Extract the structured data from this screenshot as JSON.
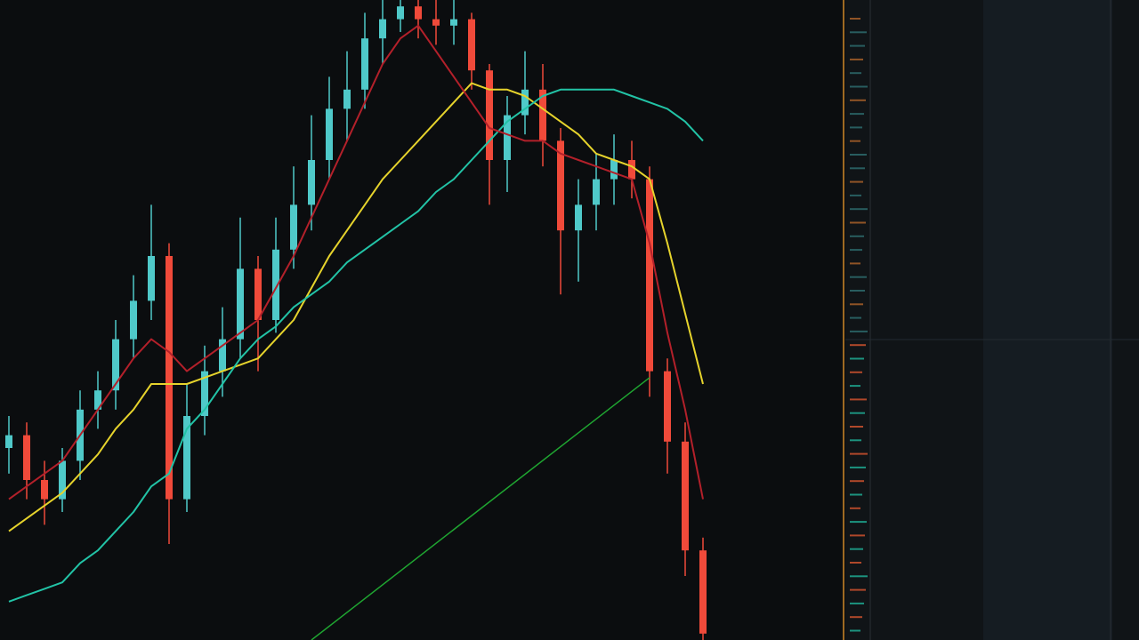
{
  "chart_data": {
    "type": "candlestick",
    "ylim": [
      0,
      100
    ],
    "up_color": "#4fc9c9",
    "down_color": "#f04a3a",
    "open": [
      30,
      32,
      25,
      22,
      28,
      36,
      39,
      47,
      53,
      60,
      22,
      35,
      42,
      47,
      58,
      50,
      61,
      68,
      75,
      83,
      86,
      94,
      97,
      99,
      97,
      96,
      97,
      89,
      75,
      82,
      86,
      78,
      64,
      68,
      72,
      75,
      72,
      42,
      31,
      14
    ],
    "close": [
      32,
      25,
      22,
      28,
      36,
      39,
      47,
      53,
      60,
      22,
      35,
      42,
      47,
      58,
      50,
      61,
      68,
      75,
      83,
      86,
      94,
      97,
      99,
      97,
      96,
      97,
      89,
      75,
      82,
      86,
      78,
      64,
      68,
      72,
      75,
      72,
      42,
      31,
      14,
      1
    ],
    "high": [
      35,
      34,
      28,
      30,
      39,
      42,
      50,
      57,
      68,
      62,
      40,
      46,
      52,
      66,
      60,
      66,
      74,
      82,
      88,
      92,
      98,
      100,
      100,
      100,
      100,
      100,
      98,
      90,
      85,
      92,
      90,
      80,
      72,
      76,
      79,
      78,
      74,
      44,
      34,
      16
    ],
    "low": [
      26,
      22,
      18,
      20,
      25,
      33,
      36,
      44,
      50,
      15,
      20,
      32,
      38,
      44,
      42,
      48,
      58,
      64,
      72,
      78,
      83,
      90,
      95,
      94,
      93,
      93,
      86,
      68,
      70,
      79,
      74,
      54,
      56,
      64,
      68,
      69,
      38,
      26,
      10,
      0
    ],
    "series": [
      {
        "color": "#e6d32c",
        "values": [
          17,
          19,
          21,
          23,
          26,
          29,
          33,
          36,
          40,
          40,
          40,
          41,
          42,
          43,
          44,
          47,
          50,
          55,
          60,
          64,
          68,
          72,
          75,
          78,
          81,
          84,
          87,
          86,
          86,
          85,
          83,
          81,
          79,
          76,
          75,
          74,
          72,
          62,
          51,
          40
        ]
      },
      {
        "color": "#22c3a6",
        "values": [
          6,
          7,
          8,
          9,
          12,
          14,
          17,
          20,
          24,
          26,
          33,
          36,
          40,
          44,
          47,
          49,
          52,
          54,
          56,
          59,
          61,
          63,
          65,
          67,
          70,
          72,
          75,
          78,
          81,
          83,
          85,
          86,
          86,
          86,
          86,
          85,
          84,
          83,
          81,
          78
        ]
      },
      {
        "color": "#b3202a",
        "values": [
          22,
          24,
          26,
          28,
          32,
          36,
          40,
          44,
          47,
          45,
          42,
          44,
          46,
          48,
          50,
          55,
          60,
          66,
          72,
          78,
          84,
          90,
          94,
          96,
          92,
          88,
          84,
          80,
          79,
          78,
          78,
          76,
          75,
          74,
          73,
          72,
          62,
          48,
          36,
          22
        ]
      }
    ],
    "trend_line": {
      "color": "#1fa531",
      "x": [
        17,
        36
      ],
      "values": [
        0,
        41
      ]
    }
  }
}
